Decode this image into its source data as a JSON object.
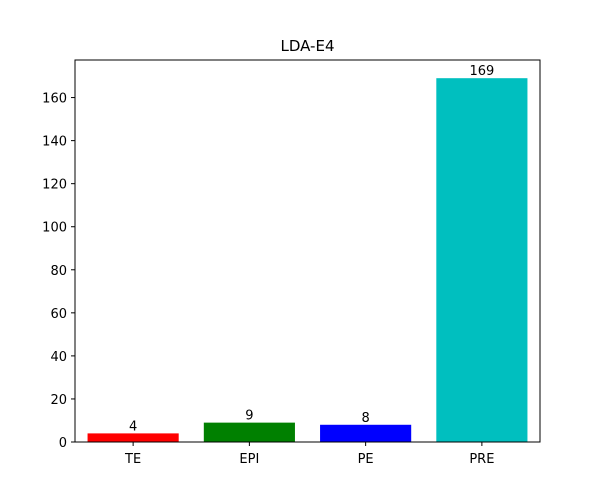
{
  "chart_data": {
    "type": "bar",
    "title": "LDA-E4",
    "xlabel": "",
    "ylabel": "",
    "categories": [
      "TE",
      "EPI",
      "PE",
      "PRE"
    ],
    "values": [
      4,
      9,
      8,
      169
    ],
    "value_labels": [
      "4",
      "9",
      "8",
      "169"
    ],
    "colors": [
      "#ff0000",
      "#008000",
      "#0000ff",
      "#00bfbf"
    ],
    "ylim": [
      0,
      177.45
    ],
    "yticks": [
      0,
      20,
      40,
      60,
      80,
      100,
      120,
      140,
      160
    ],
    "ytick_labels": [
      "0",
      "20",
      "40",
      "60",
      "80",
      "100",
      "120",
      "140",
      "160"
    ],
    "grid": false,
    "legend": "none"
  }
}
